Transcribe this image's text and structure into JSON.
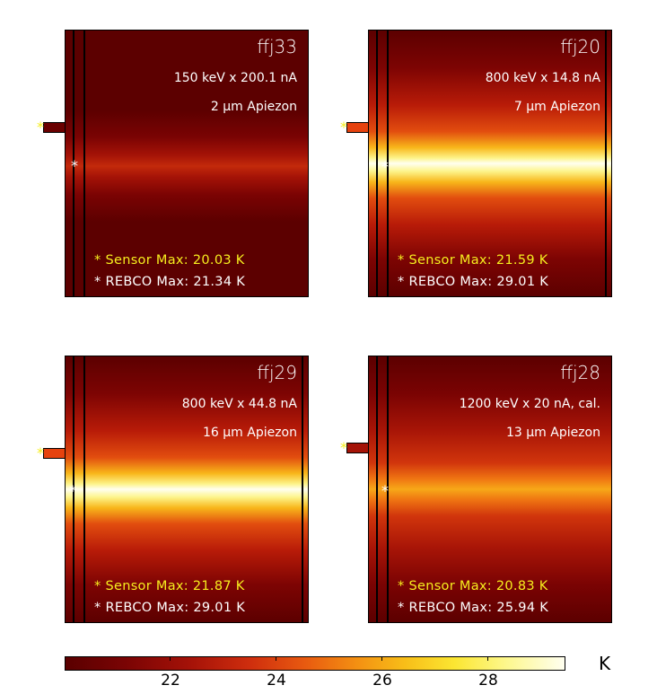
{
  "panels": [
    {
      "id": "ffj33",
      "line1": "150 keV x 200.1 nA",
      "line2": "2 µm Apiezon",
      "sensor": "Sensor Max: 20.03 K",
      "rebco": "REBCO Max: 21.34 K",
      "marker": "*"
    },
    {
      "id": "ffj20",
      "line1": "800 keV x 14.8 nA",
      "line2": "7 µm Apiezon",
      "sensor": "Sensor Max: 21.59 K",
      "rebco": "REBCO Max: 29.01 K",
      "marker": "*"
    },
    {
      "id": "ffj29",
      "line1": "800 keV x 44.8 nA",
      "line2": "16 µm Apiezon",
      "sensor": "Sensor Max: 21.87 K",
      "rebco": "REBCO Max: 29.01 K",
      "marker": "*"
    },
    {
      "id": "ffj28",
      "line1": "1200 keV x 20 nA, cal.",
      "line2": "13 µm Apiezon",
      "sensor": "Sensor Max: 20.83 K",
      "rebco": "REBCO Max: 25.94 K",
      "marker": "*"
    }
  ],
  "colorbar": {
    "ticks": [
      "22",
      "24",
      "26",
      "28"
    ],
    "unit": "K",
    "colors": {
      "min": "#5a0000",
      "mid": "#e85a10",
      "max": "#fffff0"
    }
  }
}
